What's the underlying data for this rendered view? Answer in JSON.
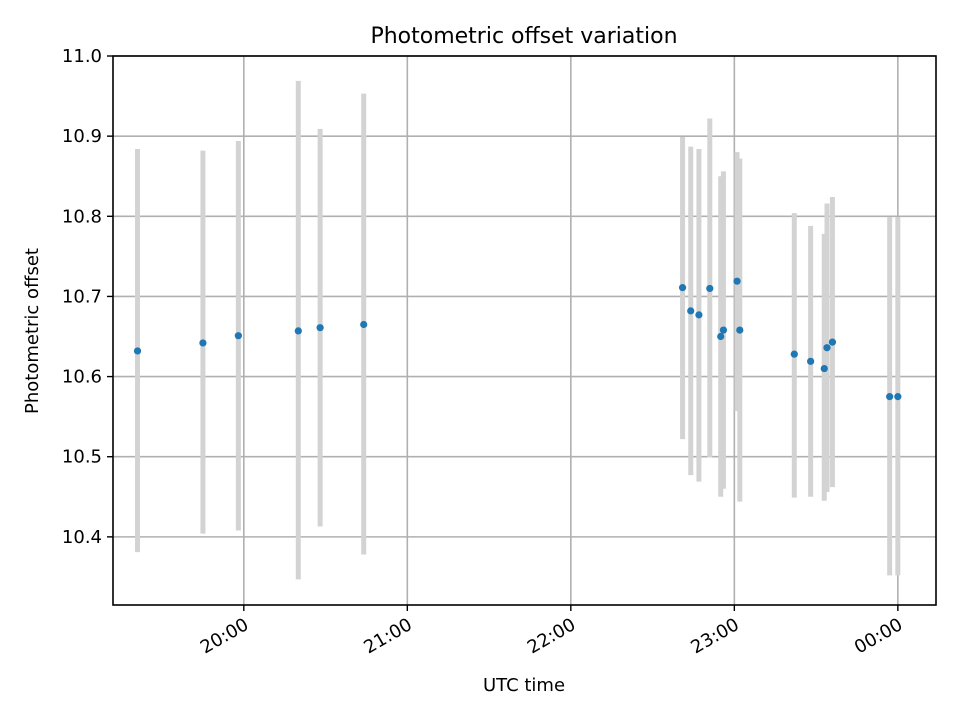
{
  "chart_data": {
    "type": "scatter",
    "title": "Photometric offset variation",
    "xlabel": "UTC time",
    "ylabel": "Photometric offset",
    "x_tick_labels": [
      "20:00",
      "21:00",
      "22:00",
      "23:00",
      "00:00"
    ],
    "x_ticks": [
      "20:00",
      "21:00",
      "22:00",
      "23:00",
      "24:00"
    ],
    "y_tick_labels": [
      "10.4",
      "10.5",
      "10.6",
      "10.7",
      "10.8",
      "10.9",
      "11.0"
    ],
    "y_ticks": [
      10.4,
      10.5,
      10.6,
      10.7,
      10.8,
      10.9,
      11.0
    ],
    "xlim": [
      "19:12",
      "24:14"
    ],
    "ylim": [
      10.315,
      11.0
    ],
    "grid": true,
    "colors": {
      "points": "#1f77b4",
      "error_bars": "#d3d3d3",
      "grid": "#b0b0b0"
    },
    "points": [
      {
        "x": "19:21",
        "y": 10.632,
        "ylo": 10.381,
        "yhi": 10.884
      },
      {
        "x": "19:45",
        "y": 10.642,
        "ylo": 10.404,
        "yhi": 10.882
      },
      {
        "x": "19:58",
        "y": 10.651,
        "ylo": 10.408,
        "yhi": 10.894
      },
      {
        "x": "20:20",
        "y": 10.657,
        "ylo": 10.347,
        "yhi": 10.969
      },
      {
        "x": "20:28",
        "y": 10.661,
        "ylo": 10.413,
        "yhi": 10.909
      },
      {
        "x": "20:44",
        "y": 10.665,
        "ylo": 10.378,
        "yhi": 10.953
      },
      {
        "x": "22:41",
        "y": 10.711,
        "ylo": 10.522,
        "yhi": 10.899
      },
      {
        "x": "22:44",
        "y": 10.682,
        "ylo": 10.477,
        "yhi": 10.887
      },
      {
        "x": "22:47",
        "y": 10.677,
        "ylo": 10.469,
        "yhi": 10.884
      },
      {
        "x": "22:51",
        "y": 10.71,
        "ylo": 10.499,
        "yhi": 10.922
      },
      {
        "x": "22:55",
        "y": 10.65,
        "ylo": 10.45,
        "yhi": 10.85
      },
      {
        "x": "22:56",
        "y": 10.658,
        "ylo": 10.46,
        "yhi": 10.856
      },
      {
        "x": "23:01",
        "y": 10.719,
        "ylo": 10.557,
        "yhi": 10.88
      },
      {
        "x": "23:02",
        "y": 10.658,
        "ylo": 10.444,
        "yhi": 10.872
      },
      {
        "x": "23:22",
        "y": 10.628,
        "ylo": 10.449,
        "yhi": 10.804
      },
      {
        "x": "23:28",
        "y": 10.619,
        "ylo": 10.45,
        "yhi": 10.788
      },
      {
        "x": "23:33",
        "y": 10.61,
        "ylo": 10.445,
        "yhi": 10.778
      },
      {
        "x": "23:34",
        "y": 10.636,
        "ylo": 10.456,
        "yhi": 10.816
      },
      {
        "x": "23:36",
        "y": 10.643,
        "ylo": 10.462,
        "yhi": 10.824
      },
      {
        "x": "23:57",
        "y": 10.575,
        "ylo": 10.352,
        "yhi": 10.799
      },
      {
        "x": "24:00",
        "y": 10.575,
        "ylo": 10.352,
        "yhi": 10.799
      }
    ]
  }
}
